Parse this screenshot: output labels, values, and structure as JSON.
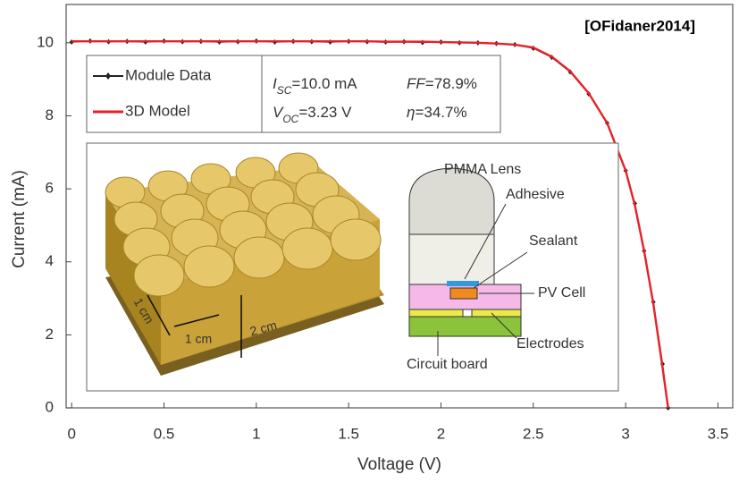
{
  "chart_data": {
    "type": "line",
    "x_label": "Voltage (V)",
    "y_label": "Current (mA)",
    "x": [
      0,
      0.1,
      0.2,
      0.3,
      0.4,
      0.5,
      0.6,
      0.7,
      0.8,
      0.9,
      1.0,
      1.1,
      1.2,
      1.3,
      1.4,
      1.5,
      1.6,
      1.7,
      1.8,
      1.9,
      2.0,
      2.1,
      2.2,
      2.3,
      2.4,
      2.5,
      2.6,
      2.7,
      2.8,
      2.9,
      3.0,
      3.05,
      3.1,
      3.15,
      3.2,
      3.23
    ],
    "series": [
      {
        "name": "Module Data",
        "color": "#222222",
        "markers": true,
        "values": [
          10.02,
          10.05,
          10.03,
          10.04,
          10.02,
          10.05,
          10.03,
          10.04,
          10.02,
          10.03,
          10.05,
          10.02,
          10.04,
          10.03,
          10.02,
          10.04,
          10.03,
          10.02,
          10.03,
          10.01,
          10.02,
          10.0,
          10.0,
          9.98,
          9.95,
          9.85,
          9.6,
          9.2,
          8.6,
          7.8,
          6.5,
          5.6,
          4.3,
          2.9,
          1.2,
          0
        ]
      },
      {
        "name": "3D Model",
        "color": "#e8202a",
        "markers": false,
        "values": [
          10.04,
          10.04,
          10.04,
          10.04,
          10.04,
          10.04,
          10.04,
          10.04,
          10.04,
          10.04,
          10.04,
          10.04,
          10.04,
          10.04,
          10.04,
          10.04,
          10.04,
          10.03,
          10.03,
          10.03,
          10.02,
          10.01,
          10.0,
          9.98,
          9.95,
          9.87,
          9.62,
          9.22,
          8.62,
          7.8,
          6.5,
          5.55,
          4.3,
          2.85,
          1.1,
          0
        ]
      }
    ],
    "xlim": [
      -0.03,
      3.58
    ],
    "ylim": [
      0,
      11.05
    ],
    "xticks": [
      0,
      0.5,
      1,
      1.5,
      2,
      2.5,
      3,
      3.5
    ],
    "yticks": [
      0,
      2,
      4,
      6,
      8,
      10
    ],
    "annotations": {
      "source": "[OFidaner2014]",
      "isc": [
        "I",
        "SC",
        "=10.0 mA"
      ],
      "voc": [
        "V",
        "OC",
        "=3.23 V"
      ],
      "ff": [
        "FF",
        "=78.9%"
      ],
      "eta": [
        "η",
        "=34.7%"
      ]
    },
    "inset": {
      "photo_labels": [
        "1 cm",
        "1 cm",
        "2 cm"
      ],
      "diagram_labels": [
        "PMMA Lens",
        "Adhesive",
        "Sealant",
        "PV Cell",
        "Electrodes",
        "Circuit board"
      ]
    }
  }
}
